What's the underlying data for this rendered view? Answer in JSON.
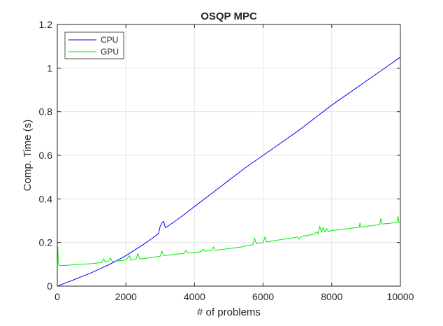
{
  "chart_data": {
    "type": "line",
    "title": "OSQP MPC",
    "xlabel": "# of problems",
    "ylabel": "Comp. Time (s)",
    "xlim": [
      0,
      10000
    ],
    "ylim": [
      0,
      1.2
    ],
    "xticks": [
      0,
      2000,
      4000,
      6000,
      8000,
      10000
    ],
    "xtick_labels": [
      "0",
      "2000",
      "4000",
      "6000",
      "8000",
      "10000"
    ],
    "yticks": [
      0,
      0.2,
      0.4,
      0.6,
      0.8,
      1.0,
      1.2
    ],
    "ytick_labels": [
      "0",
      "0.2",
      "0.4",
      "0.6",
      "0.8",
      "1",
      "1.2"
    ],
    "grid": true,
    "legend_position": "top-left",
    "series": [
      {
        "name": "CPU",
        "color": "#0000ff",
        "x": [
          0,
          250,
          500,
          750,
          1000,
          1250,
          1500,
          1750,
          2000,
          2250,
          2500,
          2750,
          2900,
          2950,
          3000,
          3050,
          3100,
          3150,
          3250,
          3500,
          3750,
          4000,
          4500,
          5000,
          5500,
          6000,
          6500,
          7000,
          7500,
          8000,
          8500,
          9000,
          9500,
          10000
        ],
        "values": [
          0.0,
          0.015,
          0.03,
          0.046,
          0.062,
          0.08,
          0.098,
          0.118,
          0.14,
          0.165,
          0.19,
          0.218,
          0.235,
          0.24,
          0.275,
          0.29,
          0.297,
          0.268,
          0.278,
          0.305,
          0.335,
          0.365,
          0.425,
          0.485,
          0.545,
          0.6,
          0.655,
          0.71,
          0.77,
          0.83,
          0.885,
          0.94,
          0.995,
          1.05
        ]
      },
      {
        "name": "GPU",
        "color": "#00ee00",
        "x": [
          0,
          15,
          30,
          60,
          100,
          300,
          500,
          700,
          1000,
          1300,
          1350,
          1400,
          1500,
          1550,
          1600,
          1800,
          2000,
          2100,
          2150,
          2200,
          2300,
          2350,
          2400,
          2600,
          2800,
          3000,
          3050,
          3100,
          3300,
          3500,
          3700,
          3750,
          3800,
          4000,
          4200,
          4250,
          4300,
          4500,
          4550,
          4600,
          4800,
          5000,
          5200,
          5400,
          5500,
          5700,
          5750,
          5800,
          6000,
          6050,
          6100,
          6300,
          6500,
          6700,
          6900,
          7000,
          7050,
          7100,
          7300,
          7500,
          7550,
          7600,
          7650,
          7700,
          7750,
          7800,
          7850,
          7900,
          8000,
          8200,
          8400,
          8600,
          8800,
          8820,
          8850,
          9000,
          9200,
          9400,
          9430,
          9460,
          9600,
          9800,
          9900,
          9930,
          9960,
          10000
        ],
        "values": [
          0.12,
          0.18,
          0.1,
          0.095,
          0.094,
          0.096,
          0.098,
          0.1,
          0.103,
          0.108,
          0.125,
          0.11,
          0.115,
          0.13,
          0.113,
          0.116,
          0.12,
          0.14,
          0.118,
          0.121,
          0.125,
          0.15,
          0.124,
          0.128,
          0.132,
          0.137,
          0.16,
          0.14,
          0.143,
          0.147,
          0.15,
          0.165,
          0.152,
          0.155,
          0.158,
          0.17,
          0.16,
          0.164,
          0.18,
          0.165,
          0.168,
          0.172,
          0.176,
          0.18,
          0.185,
          0.19,
          0.22,
          0.195,
          0.2,
          0.225,
          0.203,
          0.208,
          0.213,
          0.218,
          0.222,
          0.226,
          0.215,
          0.228,
          0.233,
          0.238,
          0.25,
          0.24,
          0.275,
          0.245,
          0.27,
          0.248,
          0.265,
          0.25,
          0.255,
          0.258,
          0.262,
          0.266,
          0.27,
          0.29,
          0.27,
          0.274,
          0.278,
          0.282,
          0.31,
          0.285,
          0.287,
          0.29,
          0.292,
          0.32,
          0.293,
          0.295
        ]
      }
    ]
  }
}
